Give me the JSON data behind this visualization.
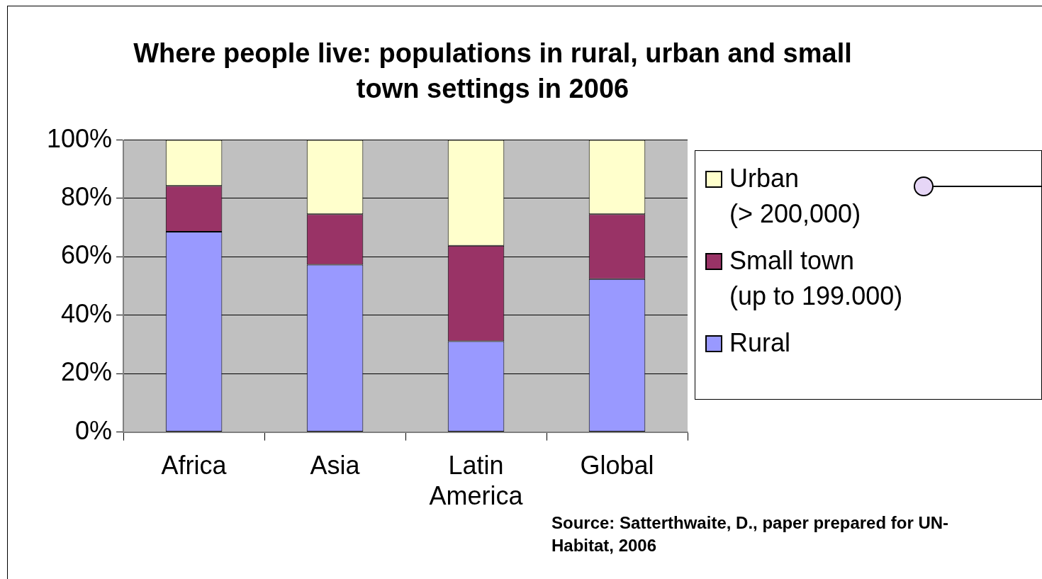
{
  "chart_data": {
    "type": "bar",
    "stacked": true,
    "title": "Where people live: populations in rural, urban and small town settings in 2006",
    "categories": [
      "Africa",
      "Asia",
      "Latin America",
      "Global"
    ],
    "series": [
      {
        "name": "Rural",
        "color": "#9999ff",
        "values": [
          68.6,
          57.3,
          31.1,
          52.4
        ]
      },
      {
        "name": "Small town (up to 199.000)",
        "color": "#993366",
        "values": [
          15.7,
          17.3,
          32.7,
          22.2
        ]
      },
      {
        "name": "Urban (> 200,000)",
        "color": "#ffffcc",
        "values": [
          15.7,
          25.4,
          36.2,
          25.4
        ]
      }
    ],
    "ylim": [
      0,
      100
    ],
    "yticks": [
      {
        "value": 0,
        "label": "0%"
      },
      {
        "value": 20,
        "label": "20%"
      },
      {
        "value": 40,
        "label": "40%"
      },
      {
        "value": 60,
        "label": "60%"
      },
      {
        "value": 80,
        "label": "80%"
      },
      {
        "value": 100,
        "label": "100%"
      }
    ],
    "grid": "y",
    "legend": "right",
    "annotations": [
      "Source: Satterthwaite, D., paper prepared for UN-Habitat, 2006"
    ]
  }
}
